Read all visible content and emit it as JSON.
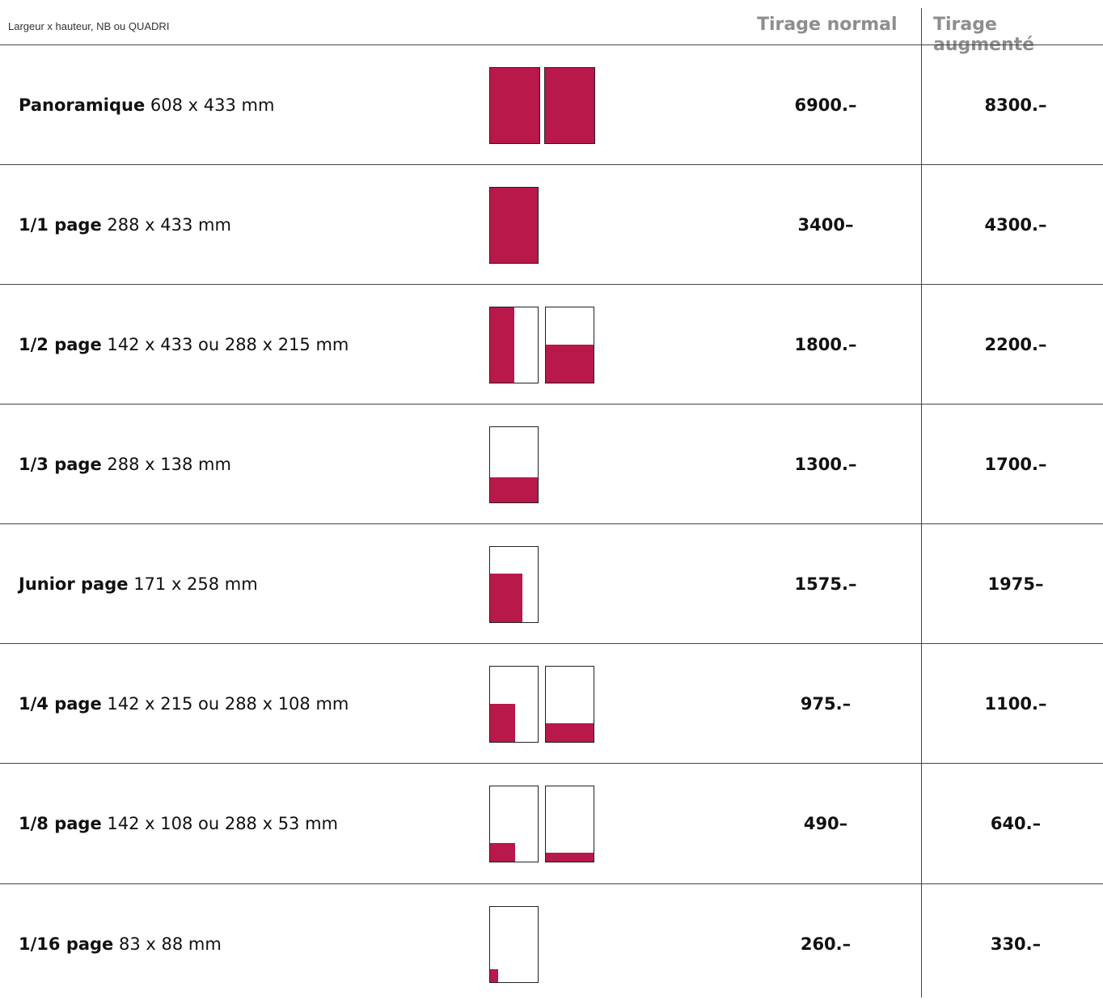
{
  "header": {
    "subtitle": "Largeur x hauteur, NB ou QUADRI",
    "col_normal": "Tirage normal",
    "col_augmente": "Tirage augmenté"
  },
  "colors": {
    "accent": "#b9184a",
    "rule": "#444444",
    "header_text": "#8e8e8e"
  },
  "rows": [
    {
      "name": "Panoramique",
      "dims": "608 x 433 mm",
      "normal": "6900.–",
      "augmente": "8300.–"
    },
    {
      "name": "1/1 page",
      "dims": "288 x 433 mm",
      "normal": "3400–",
      "augmente": "4300.–"
    },
    {
      "name": "1/2 page",
      "dims": "142 x 433 ou 288 x 215 mm",
      "normal": "1800.–",
      "augmente": "2200.–"
    },
    {
      "name": "1/3 page",
      "dims": "288 x 138 mm",
      "normal": "1300.–",
      "augmente": "1700.–"
    },
    {
      "name": "Junior page",
      "dims": "171 x 258 mm",
      "normal": "1575.–",
      "augmente": "1975–"
    },
    {
      "name": "1/4 page",
      "dims": "142 x 215 ou 288 x 108 mm",
      "normal": "975.–",
      "augmente": "1100.–"
    },
    {
      "name": "1/8 page",
      "dims": "142 x 108 ou 288 x 53 mm",
      "normal": "490–",
      "augmente": "640.–"
    },
    {
      "name": "1/16 page",
      "dims": "83 x 88 mm",
      "normal": "260.–",
      "augmente": "330.–"
    }
  ]
}
